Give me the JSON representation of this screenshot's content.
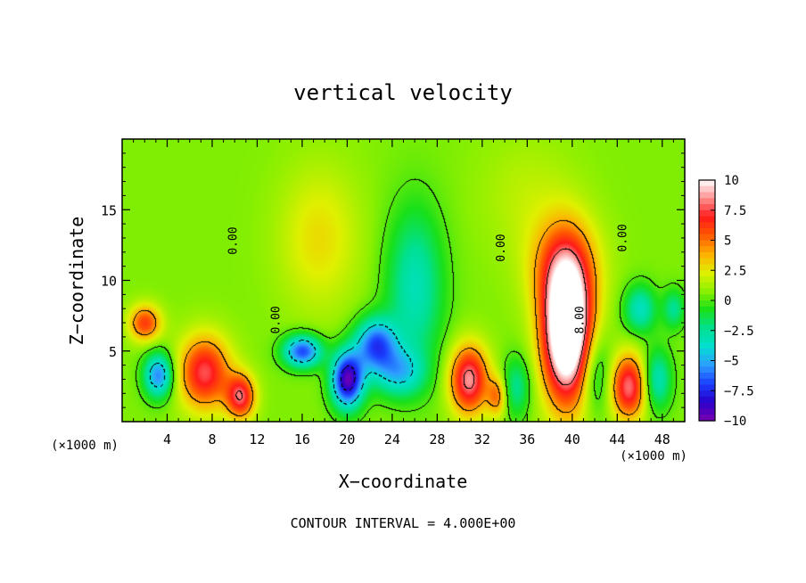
{
  "chart_data": {
    "type": "heatmap",
    "title": "vertical velocity",
    "xlabel": "X−coordinate",
    "ylabel": "Z−coordinate",
    "x_unit_left": "(×1000 m)",
    "x_unit_right": "(×1000 m)",
    "footer": "CONTOUR INTERVAL = 4.000E+00",
    "xlim": [
      0,
      50
    ],
    "ylim": [
      0,
      20
    ],
    "x_ticks": [
      4,
      8,
      12,
      16,
      20,
      24,
      28,
      32,
      36,
      40,
      44,
      48
    ],
    "x_tick_labels": [
      "4",
      "8",
      "12",
      "16",
      "20",
      "24",
      "28",
      "32",
      "36",
      "40",
      "44",
      "48"
    ],
    "y_ticks": [
      5,
      10,
      15
    ],
    "y_tick_labels": [
      "5",
      "10",
      "15"
    ],
    "colorbar": {
      "range": [
        -10,
        10
      ],
      "ticks": [
        10,
        7.5,
        5,
        2.5,
        0,
        -2.5,
        -5,
        -7.5,
        -10
      ],
      "tick_labels": [
        "10",
        "7.5",
        "5",
        "2.5",
        "0",
        "−2.5",
        "−5",
        "−7.5",
        "−10"
      ],
      "colors": [
        "#7a00b0",
        "#2a00cc",
        "#1a40ff",
        "#2f9fff",
        "#00e0d0",
        "#00e090",
        "#19e019",
        "#8cf000",
        "#e0f000",
        "#ffb000",
        "#ff5a00",
        "#ff1a1a",
        "#ff9090",
        "#ffffff"
      ]
    },
    "contour_labels": [
      {
        "x": 10.2,
        "z": 12.8,
        "text": "0.00"
      },
      {
        "x": 14.0,
        "z": 7.2,
        "text": "0.00"
      },
      {
        "x": 34.0,
        "z": 12.3,
        "text": "0.00"
      },
      {
        "x": 44.8,
        "z": 13.0,
        "text": "0.00"
      },
      {
        "x": 41.0,
        "z": 7.2,
        "text": "8.00"
      }
    ],
    "cells": [
      {
        "x": 2.0,
        "z": 7.0,
        "v": 5.5,
        "sx": 1.0,
        "sz": 0.9
      },
      {
        "x": 3.2,
        "z": 3.3,
        "v": -6.5,
        "sx": 0.9,
        "sz": 1.1
      },
      {
        "x": 7.3,
        "z": 3.5,
        "v": 7.0,
        "sx": 1.6,
        "sz": 1.8
      },
      {
        "x": 10.5,
        "z": 1.8,
        "v": 7.0,
        "sx": 0.9,
        "sz": 1.1
      },
      {
        "x": 16.0,
        "z": 5.0,
        "v": -7.5,
        "sx": 1.2,
        "sz": 0.8
      },
      {
        "x": 20.0,
        "z": 3.0,
        "v": -10.0,
        "sx": 1.0,
        "sz": 1.4
      },
      {
        "x": 22.5,
        "z": 5.5,
        "v": -7.0,
        "sx": 1.3,
        "sz": 1.3
      },
      {
        "x": 24.5,
        "z": 3.5,
        "v": -4.5,
        "sx": 1.6,
        "sz": 1.2
      },
      {
        "x": 26.0,
        "z": 9.5,
        "v": -3.8,
        "sx": 1.8,
        "sz": 4.0
      },
      {
        "x": 17.5,
        "z": 13.0,
        "v": 2.2,
        "sx": 2.5,
        "sz": 3.5
      },
      {
        "x": 30.8,
        "z": 3.0,
        "v": 8.0,
        "sx": 1.2,
        "sz": 1.7
      },
      {
        "x": 33.3,
        "z": 1.8,
        "v": 4.0,
        "sx": 0.6,
        "sz": 1.0
      },
      {
        "x": 35.0,
        "z": 2.5,
        "v": -3.0,
        "sx": 0.9,
        "sz": 1.5
      },
      {
        "x": 39.5,
        "z": 6.5,
        "v": 14.0,
        "sx": 1.5,
        "sz": 3.5
      },
      {
        "x": 39.2,
        "z": 11.0,
        "v": 4.0,
        "sx": 2.2,
        "sz": 2.5
      },
      {
        "x": 42.0,
        "z": 3.5,
        "v": -3.0,
        "sx": 1.0,
        "sz": 2.0
      },
      {
        "x": 45.0,
        "z": 2.5,
        "v": 7.5,
        "sx": 1.1,
        "sz": 1.6
      },
      {
        "x": 46.0,
        "z": 8.0,
        "v": -4.0,
        "sx": 1.0,
        "sz": 1.2
      },
      {
        "x": 47.5,
        "z": 3.0,
        "v": -4.0,
        "sx": 0.9,
        "sz": 1.5
      },
      {
        "x": 49.0,
        "z": 8.0,
        "v": -3.0,
        "sx": 0.7,
        "sz": 1.0
      },
      {
        "x": 36.0,
        "z": 16.0,
        "v": 1.0,
        "sx": 3.0,
        "sz": 3.0
      }
    ]
  }
}
